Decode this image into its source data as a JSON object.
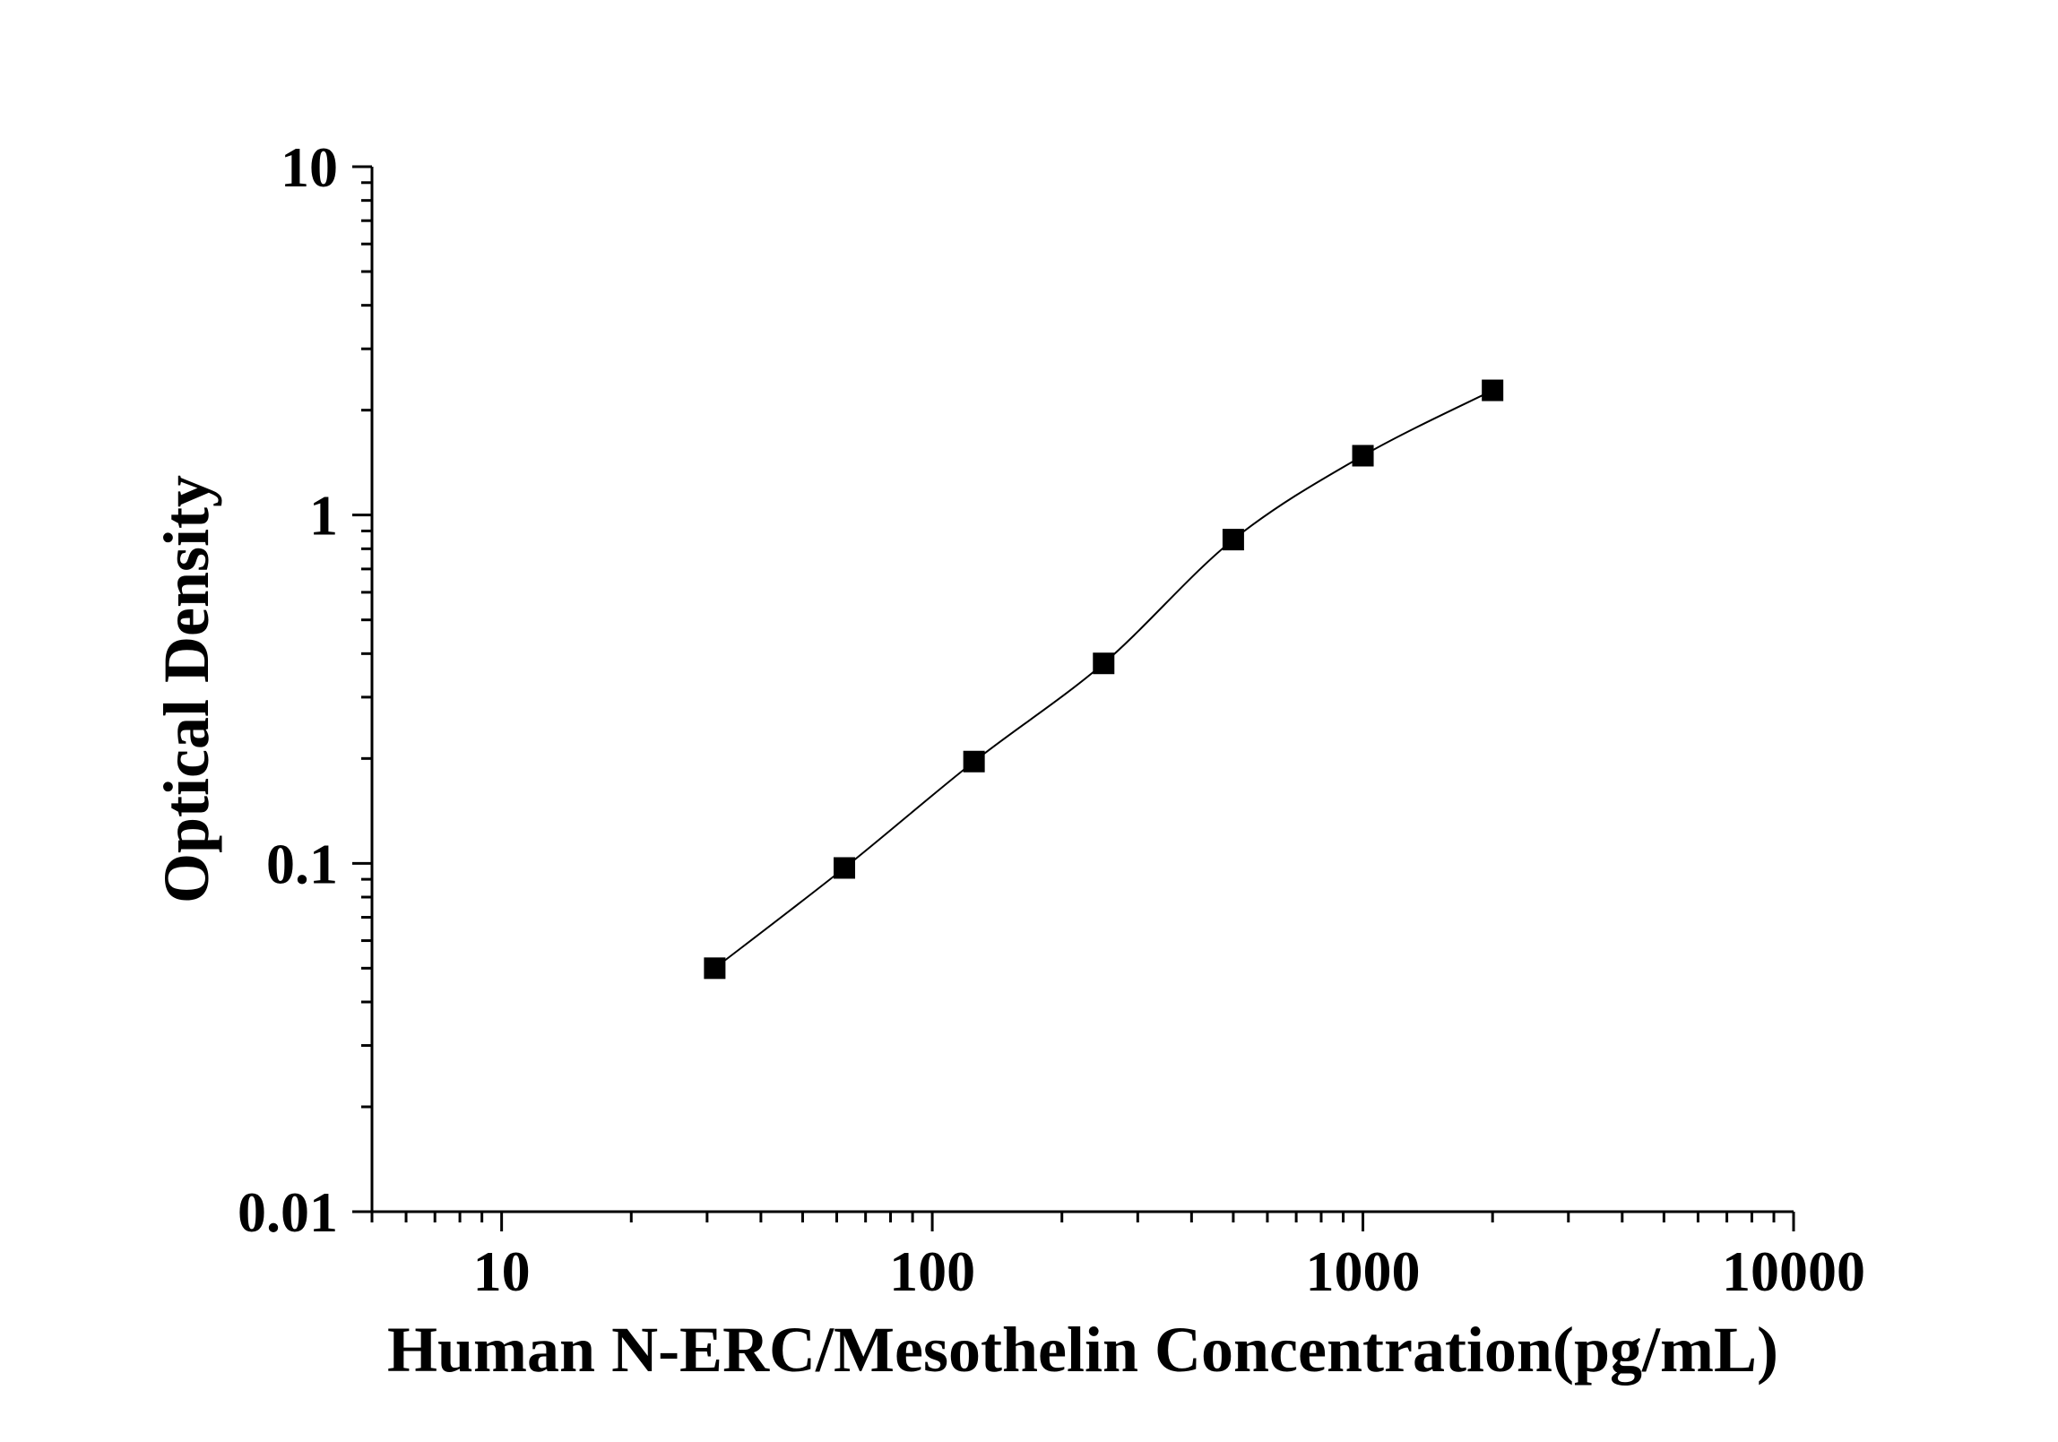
{
  "chart_data": {
    "type": "scatter",
    "title": "",
    "xlabel": "Human N-ERC/Mesothelin Concentration(pg/mL)",
    "ylabel": "Optical Density",
    "xscale": "log",
    "yscale": "log",
    "xlim": [
      5,
      10000
    ],
    "ylim": [
      0.01,
      10
    ],
    "x_ticks": [
      "10",
      "100",
      "1000",
      "10000"
    ],
    "y_ticks": [
      "0.01",
      "0.1",
      "1",
      "10"
    ],
    "grid": false,
    "legend": "none",
    "marker": "square",
    "connect_points": true,
    "color": "#000000",
    "series": [
      {
        "x": [
          31.25,
          62.5,
          125,
          250,
          500,
          1000,
          2000
        ],
        "y": [
          0.05,
          0.097,
          0.196,
          0.375,
          0.85,
          1.48,
          2.28
        ]
      }
    ]
  }
}
